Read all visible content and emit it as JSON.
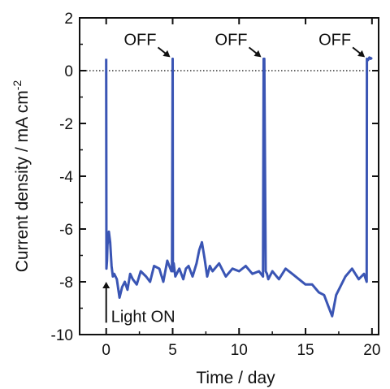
{
  "chart_data": {
    "type": "line",
    "xlabel": "Time / day",
    "ylabel_main": "Current density / mA cm",
    "ylabel_sup": "-2",
    "xlim": [
      -2,
      20.5
    ],
    "ylim": [
      -10,
      2
    ],
    "xticks": [
      "0",
      "5",
      "10",
      "15",
      "20"
    ],
    "yticks": [
      "2",
      "0",
      "-2",
      "-4",
      "-6",
      "-8",
      "-10"
    ],
    "grid": false,
    "legend": "none",
    "reference_line_y": 0,
    "colors": {
      "series": "#3a55b4",
      "axis": "#111111"
    },
    "series": [
      {
        "x": [
          0,
          0.02,
          0.06,
          0.1,
          0.2,
          0.3,
          0.4,
          0.5,
          0.6,
          0.8,
          1.0,
          1.2,
          1.4,
          1.6,
          1.8,
          2.0,
          2.3,
          2.6,
          3.0,
          3.3,
          3.6,
          4.0,
          4.3,
          4.6,
          4.9,
          4.95,
          5.0,
          5.02,
          5.08,
          5.2,
          5.5,
          5.8,
          6.0,
          6.2,
          6.5,
          6.8,
          7.0,
          7.2,
          7.4,
          7.6,
          7.8,
          8.0,
          8.5,
          9.0,
          9.5,
          10.0,
          10.5,
          11.0,
          11.5,
          11.8,
          11.85,
          11.9,
          12.0,
          12.1,
          12.2,
          12.5,
          13.0,
          13.5,
          14.0,
          14.5,
          15.0,
          15.5,
          16.0,
          16.4,
          16.7,
          17.0,
          17.3,
          17.7,
          18.0,
          18.5,
          19.0,
          19.4,
          19.6,
          19.62,
          19.7,
          19.8,
          19.9,
          20.0
        ],
        "y": [
          0.45,
          -7.5,
          -7.2,
          -6.6,
          -6.1,
          -6.5,
          -7.4,
          -7.8,
          -7.7,
          -7.9,
          -8.6,
          -8.2,
          -8.0,
          -8.3,
          -7.7,
          -7.9,
          -8.1,
          -7.6,
          -7.8,
          -8.0,
          -7.4,
          -7.5,
          -8.0,
          -7.2,
          -7.6,
          -7.4,
          0.45,
          -7.6,
          -7.3,
          -7.8,
          -7.5,
          -7.9,
          -7.5,
          -7.4,
          -7.8,
          -7.3,
          -6.8,
          -6.5,
          -7.1,
          -7.8,
          -7.4,
          -7.6,
          -7.3,
          -7.8,
          -7.5,
          -7.6,
          -7.4,
          -7.7,
          -7.6,
          -7.8,
          0.45,
          0.45,
          -7.6,
          -7.7,
          -7.9,
          -7.6,
          -7.9,
          -7.5,
          -7.7,
          -7.9,
          -8.1,
          -8.1,
          -8.4,
          -8.5,
          -8.9,
          -9.3,
          -8.5,
          -8.1,
          -7.8,
          -7.5,
          -7.9,
          -7.7,
          -8.0,
          0.45,
          0.4,
          0.5,
          0.45,
          0.5
        ]
      }
    ],
    "annotations": {
      "off_label": "OFF",
      "off_arrow_targets": [
        {
          "x": 5.0,
          "y": 0.45
        },
        {
          "x": 11.85,
          "y": 0.45
        },
        {
          "x": 19.65,
          "y": 0.45
        }
      ],
      "light_on_label": "Light ON",
      "light_on_arrow": {
        "x": 0.0,
        "y_from": -9.55,
        "y_to": -8.0
      }
    }
  }
}
